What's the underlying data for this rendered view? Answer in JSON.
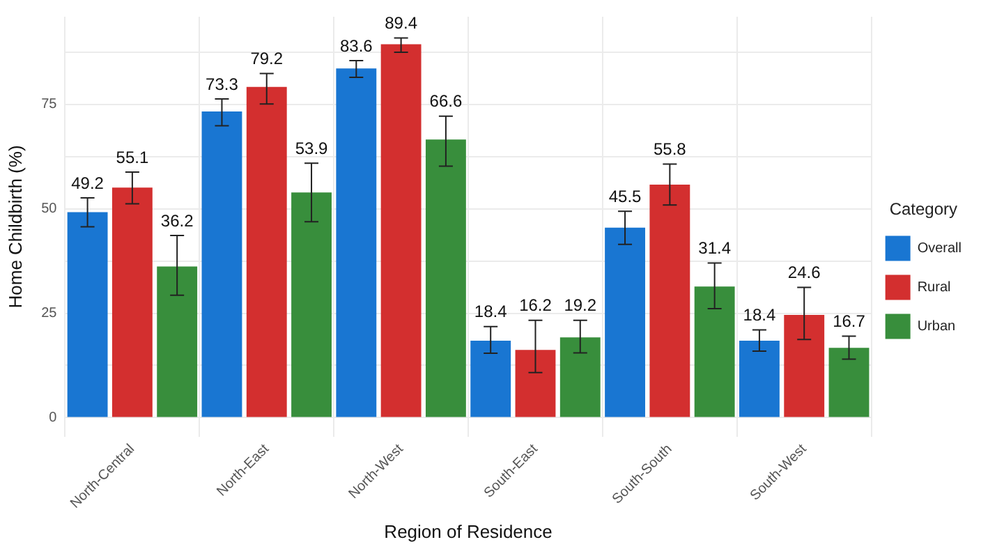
{
  "chart_data": {
    "type": "bar",
    "xlabel": "Region of Residence",
    "ylabel": "Home Childbirth (%)",
    "legend_title": "Category",
    "legend": "right",
    "grid": true,
    "data_labels": true,
    "categories": [
      "North-Central",
      "North-East",
      "North-West",
      "South-East",
      "South-South",
      "South-West"
    ],
    "ylim": [
      -4.6,
      96
    ],
    "yticks": [
      0,
      {
        "value": 12.5,
        "label": null
      },
      25,
      {
        "value": 37.5,
        "label": null
      },
      50,
      {
        "value": 62.5,
        "label": null
      },
      75,
      {
        "value": 87.5,
        "label": null
      }
    ],
    "series": [
      {
        "name": "Overall",
        "color": "#1976d2",
        "values": [
          49.2,
          73.3,
          83.6,
          18.4,
          45.5,
          18.4
        ],
        "errors": [
          [
            45.7,
            52.6
          ],
          [
            69.9,
            76.3
          ],
          [
            81.5,
            85.5
          ],
          [
            15.4,
            21.8
          ],
          [
            41.5,
            49.4
          ],
          [
            15.9,
            21.0
          ]
        ]
      },
      {
        "name": "Rural",
        "color": "#d32f2f",
        "values": [
          55.1,
          79.2,
          89.4,
          16.2,
          55.8,
          24.6
        ],
        "errors": [
          [
            51.2,
            58.8
          ],
          [
            75.1,
            82.4
          ],
          [
            87.5,
            90.9
          ],
          [
            10.8,
            23.3
          ],
          [
            50.9,
            60.7
          ],
          [
            18.7,
            31.2
          ]
        ]
      },
      {
        "name": "Urban",
        "color": "#388e3c",
        "values": [
          36.2,
          53.9,
          66.6,
          19.2,
          31.4,
          16.7
        ],
        "errors": [
          [
            29.3,
            43.6
          ],
          [
            46.9,
            60.9
          ],
          [
            60.2,
            72.2
          ],
          [
            15.5,
            23.3
          ],
          [
            26.1,
            37.0
          ],
          [
            14.0,
            19.5
          ]
        ]
      }
    ]
  }
}
